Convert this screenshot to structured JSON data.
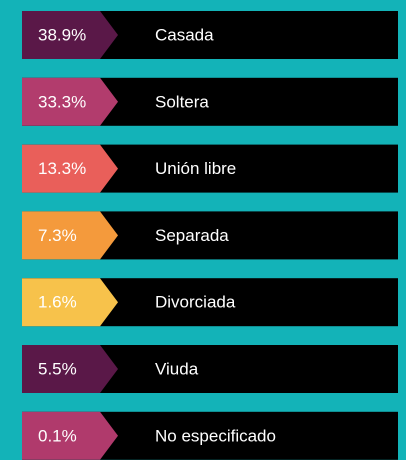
{
  "items": [
    {
      "percent": "38.9%",
      "label": "Casada",
      "color": "#5a1848"
    },
    {
      "percent": "33.3%",
      "label": "Soltera",
      "color": "#b23c6d"
    },
    {
      "percent": "13.3%",
      "label": "Unión libre",
      "color": "#e95f5a"
    },
    {
      "percent": "7.3%",
      "label": "Separada",
      "color": "#f49a3c"
    },
    {
      "percent": "1.6%",
      "label": "Divorciada",
      "color": "#f7c24b"
    },
    {
      "percent": "5.5%",
      "label": "Viuda",
      "color": "#5a1848"
    },
    {
      "percent": "0.1%",
      "label": "No especificado",
      "color": "#b03a6c"
    }
  ]
}
